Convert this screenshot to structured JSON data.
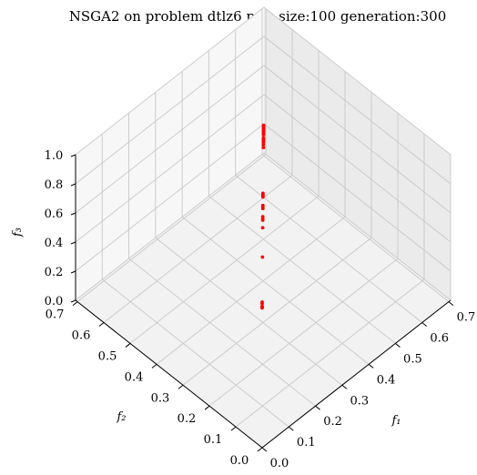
{
  "chart_data": {
    "type": "scatter",
    "projection": "3d",
    "title": "NSGA2 on problem dtlz6 pop_size:100 generation:300",
    "xlabel": "f₁",
    "ylabel": "f₂",
    "zlabel": "f₃",
    "xlim": [
      0.0,
      0.707
    ],
    "ylim": [
      0.0,
      0.707
    ],
    "zlim": [
      0.0,
      1.0
    ],
    "x_ticks": [
      "0.0",
      "0.1",
      "0.2",
      "0.3",
      "0.4",
      "0.5",
      "0.6",
      "0.7"
    ],
    "y_ticks": [
      "0.0",
      "0.1",
      "0.2",
      "0.3",
      "0.4",
      "0.5",
      "0.6",
      "0.7"
    ],
    "z_ticks": [
      "0.0",
      "0.2",
      "0.4",
      "0.6",
      "0.8",
      "1.0"
    ],
    "grid": true,
    "marker_color": "#ff0000",
    "series": [
      {
        "points": [
          [
            0.0,
            0.0,
            1.0
          ],
          [
            0.0,
            0.0,
            0.99
          ],
          [
            0.0,
            0.0,
            0.97
          ],
          [
            0.0,
            0.0,
            0.965
          ],
          [
            0.0,
            0.0,
            0.96
          ],
          [
            0.115,
            0.115,
            0.98
          ],
          [
            0.2,
            0.2,
            0.938
          ],
          [
            0.222,
            0.222,
            0.927
          ],
          [
            0.226,
            0.226,
            0.925
          ],
          [
            0.232,
            0.232,
            0.922
          ],
          [
            0.257,
            0.257,
            0.907
          ],
          [
            0.262,
            0.262,
            0.904
          ],
          [
            0.266,
            0.266,
            0.902
          ],
          [
            0.294,
            0.294,
            0.88
          ],
          [
            0.298,
            0.298,
            0.877
          ],
          [
            0.302,
            0.302,
            0.874
          ],
          [
            0.306,
            0.306,
            0.871
          ],
          [
            0.45,
            0.45,
            0.772
          ],
          [
            0.46,
            0.46,
            0.762
          ],
          [
            0.47,
            0.47,
            0.748
          ],
          [
            0.478,
            0.478,
            0.738
          ],
          [
            0.484,
            0.484,
            0.731
          ],
          [
            0.49,
            0.49,
            0.724
          ],
          [
            0.507,
            0.507,
            0.697
          ],
          [
            0.513,
            0.513,
            0.689
          ],
          [
            0.519,
            0.519,
            0.681
          ],
          [
            0.525,
            0.525,
            0.672
          ],
          [
            0.531,
            0.531,
            0.663
          ],
          [
            0.537,
            0.537,
            0.654
          ],
          [
            0.543,
            0.543,
            0.645
          ],
          [
            0.549,
            0.549,
            0.635
          ],
          [
            0.555,
            0.555,
            0.625
          ]
        ]
      }
    ]
  }
}
